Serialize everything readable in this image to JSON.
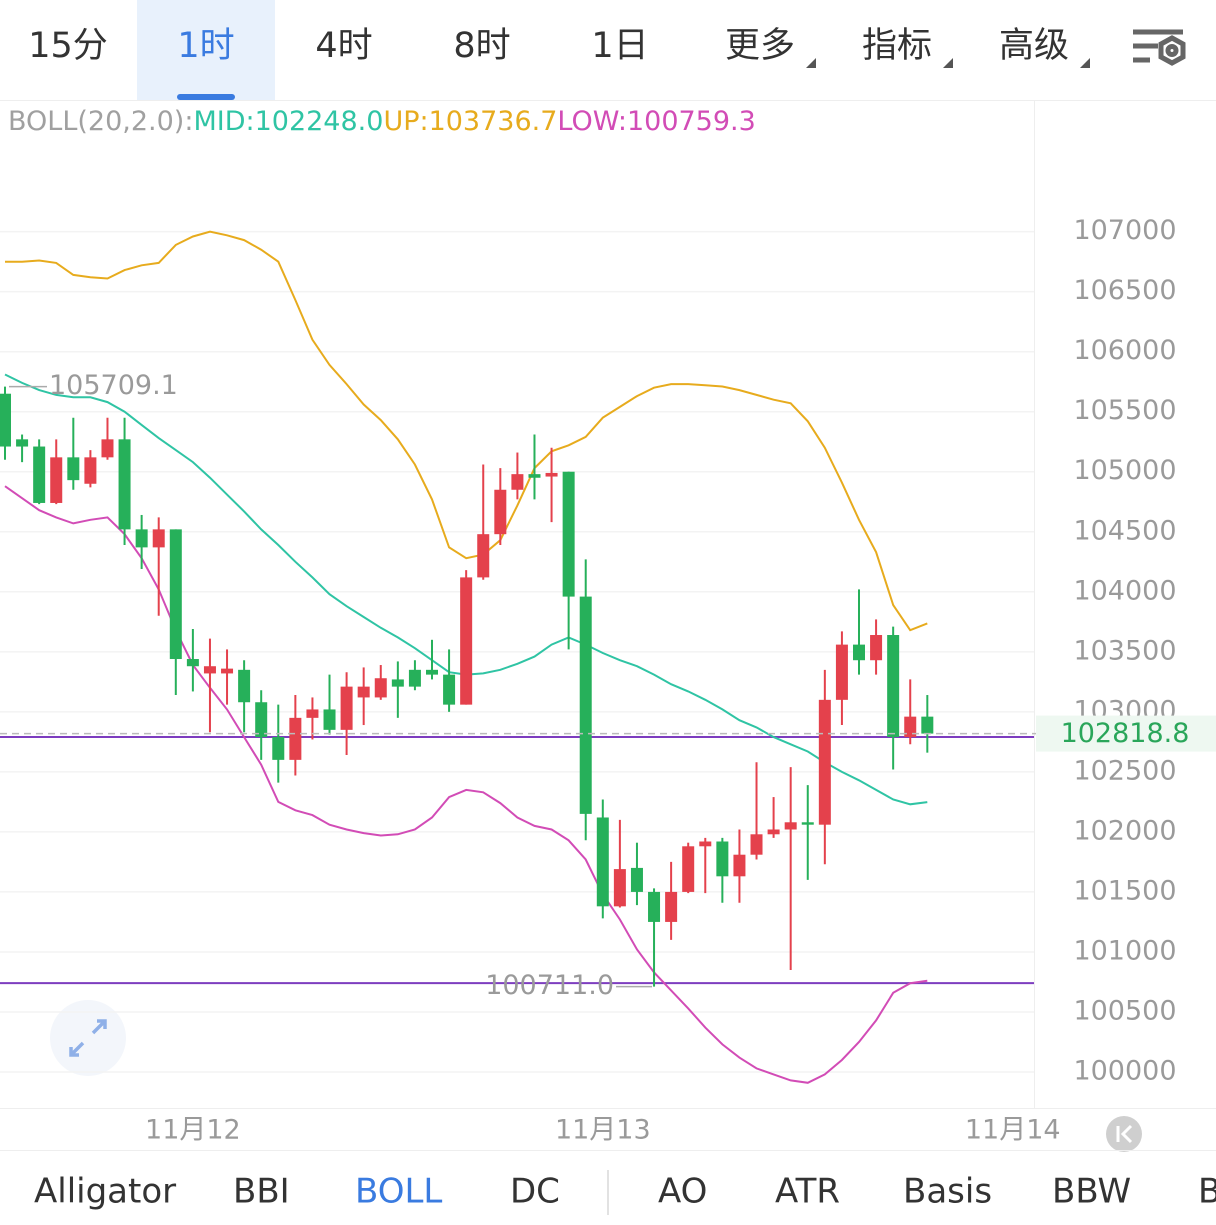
{
  "tabs": {
    "periods": [
      "15分",
      "1时",
      "4时",
      "8时",
      "1日"
    ],
    "selected": 1,
    "menus": [
      "更多",
      "指标",
      "高级"
    ]
  },
  "chart_data": {
    "type": "candlestick",
    "indicator": "BOLL(20,2.0):",
    "up_color": "#e4414c",
    "down_color": "#26b05a",
    "open": [
      105650,
      105270,
      105210,
      104740,
      105120,
      104900,
      105120,
      105270,
      104520,
      104370,
      104520,
      103440,
      103320,
      103320,
      103350,
      103080,
      102790,
      102600,
      102950,
      103020,
      102850,
      103120,
      103120,
      103270,
      103350,
      103350,
      103310,
      103060,
      104120,
      104480,
      104850,
      104980,
      104960,
      105000,
      103960,
      102120,
      101380,
      101700,
      101500,
      101250,
      101500,
      101880,
      101920,
      101630,
      101810,
      101980,
      102020,
      102080,
      102060,
      103100,
      103560,
      103430,
      103640,
      102790,
      102960
    ],
    "high": [
      105709.1,
      105310,
      105270,
      105270,
      105450,
      105180,
      105450,
      105450,
      104640,
      104620,
      104520,
      103690,
      103610,
      103520,
      103430,
      103180,
      103060,
      103140,
      103120,
      103310,
      103330,
      103370,
      103390,
      103420,
      103430,
      103600,
      103520,
      104180,
      105060,
      105030,
      105160,
      105310,
      105200,
      105000,
      104270,
      102270,
      102100,
      101910,
      101530,
      101750,
      101910,
      101950,
      101950,
      102020,
      102580,
      102290,
      102540,
      102390,
      103350,
      103670,
      104020,
      103770,
      103710,
      103270,
      103140
    ],
    "low": [
      105100,
      105080,
      104730,
      104730,
      104850,
      104870,
      105100,
      104390,
      104190,
      103800,
      103140,
      103170,
      102830,
      103060,
      102830,
      102600,
      102410,
      102470,
      102770,
      102810,
      102640,
      102890,
      103100,
      102950,
      103180,
      103270,
      103000,
      103060,
      104100,
      104390,
      104770,
      104770,
      104580,
      103520,
      101930,
      101280,
      101370,
      101390,
      100711,
      101100,
      101490,
      101490,
      101410,
      101410,
      101770,
      101950,
      100850,
      101600,
      101730,
      102890,
      103310,
      103310,
      102520,
      102730,
      102660
    ],
    "close": [
      105210,
      105210,
      104740,
      105120,
      104930,
      105120,
      105270,
      104520,
      104370,
      104520,
      103440,
      103380,
      103380,
      103360,
      103080,
      102790,
      102600,
      102950,
      103020,
      102850,
      103210,
      103210,
      103280,
      103210,
      103210,
      103310,
      103060,
      104120,
      104480,
      104850,
      104980,
      104950,
      104990,
      103960,
      102150,
      101380,
      101690,
      101500,
      101250,
      101500,
      101880,
      101920,
      101630,
      101810,
      101980,
      102020,
      102080,
      102060,
      103100,
      103560,
      103430,
      103640,
      102790,
      102960,
      102818.8
    ],
    "series": [
      {
        "name": "MID:",
        "color": "#2fc4a4",
        "readout": "102248.0",
        "values": [
          105810,
          105740,
          105680,
          105640,
          105620,
          105620,
          105580,
          105500,
          105390,
          105280,
          105180,
          105080,
          104950,
          104810,
          104670,
          104520,
          104390,
          104250,
          104120,
          103980,
          103880,
          103790,
          103700,
          103620,
          103530,
          103430,
          103330,
          103310,
          103320,
          103350,
          103400,
          103460,
          103560,
          103620,
          103560,
          103490,
          103430,
          103380,
          103310,
          103230,
          103170,
          103100,
          103020,
          102930,
          102870,
          102790,
          102730,
          102670,
          102580,
          102500,
          102430,
          102350,
          102270,
          102230,
          102248
        ]
      },
      {
        "name": "UP:",
        "color": "#e7ab1d",
        "values": [
          106750,
          106750,
          106760,
          106740,
          106640,
          106620,
          106610,
          106680,
          106720,
          106740,
          106890,
          106960,
          107000,
          106970,
          106930,
          106850,
          106750,
          106430,
          106100,
          105890,
          105730,
          105560,
          105430,
          105270,
          105060,
          104770,
          104370,
          104280,
          104310,
          104430,
          104720,
          105030,
          105170,
          105220,
          105290,
          105450,
          105540,
          105630,
          105700,
          105730,
          105730,
          105720,
          105710,
          105680,
          105640,
          105600,
          105570,
          105420,
          105200,
          104910,
          104600,
          104330,
          103890,
          103680,
          103736.7
        ]
      },
      {
        "name": "LOW:",
        "color": "#d24cb6",
        "values": [
          104880,
          104780,
          104680,
          104620,
          104570,
          104600,
          104620,
          104480,
          104280,
          104020,
          103680,
          103390,
          103200,
          103020,
          102790,
          102560,
          102250,
          102180,
          102140,
          102060,
          102020,
          101990,
          101970,
          101980,
          102020,
          102120,
          102290,
          102350,
          102330,
          102240,
          102120,
          102050,
          102020,
          101930,
          101770,
          101480,
          101270,
          101020,
          100830,
          100680,
          100530,
          100370,
          100230,
          100120,
          100030,
          99980,
          99930,
          99910,
          99980,
          100100,
          100250,
          100430,
          100660,
          100740,
          100759.3
        ]
      }
    ],
    "hlines": [
      {
        "value": 102790,
        "color": "#7d3dbf"
      },
      {
        "value": 100740,
        "color": "#7d3dbf"
      }
    ],
    "min_label": "100711.0",
    "ylim": [
      99700,
      108080
    ],
    "yticks": [
      100000,
      100500,
      101000,
      101500,
      102000,
      102500,
      103000,
      103500,
      104000,
      104500,
      105000,
      105500,
      106000,
      106500,
      107000
    ],
    "xticks": [
      {
        "value": 11,
        "label": "11月12"
      },
      {
        "value": 35,
        "label": "11月13"
      },
      {
        "value": 59,
        "label": "11月14"
      }
    ],
    "grid": true
  },
  "indicator_tabs": {
    "items": [
      "Alligator",
      "BBI",
      "BOLL",
      "DC",
      "AO",
      "ATR",
      "Basis",
      "BBW",
      "B"
    ],
    "selected": 2
  }
}
